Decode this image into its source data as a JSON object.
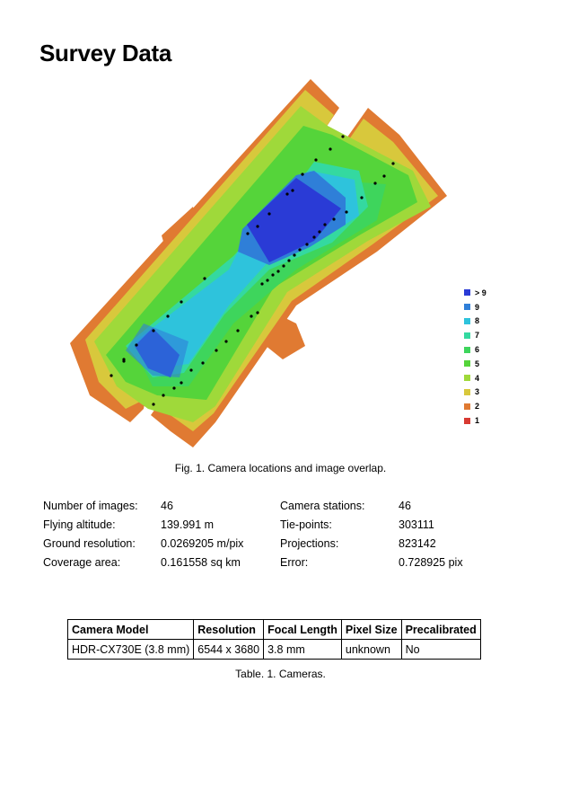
{
  "title": "Survey Data",
  "figure": {
    "caption": "Fig. 1. Camera locations and image overlap.",
    "legend": [
      {
        "label": "> 9",
        "color": "#2a3bd6"
      },
      {
        "label": "9",
        "color": "#2f7fd8"
      },
      {
        "label": "8",
        "color": "#2ec3dc"
      },
      {
        "label": "7",
        "color": "#34d9a0"
      },
      {
        "label": "6",
        "color": "#3ed55c"
      },
      {
        "label": "5",
        "color": "#55d43a"
      },
      {
        "label": "4",
        "color": "#9fd93a"
      },
      {
        "label": "3",
        "color": "#d8c83c"
      },
      {
        "label": "2",
        "color": "#e07a32"
      },
      {
        "label": "1",
        "color": "#d83a32"
      }
    ]
  },
  "stats": {
    "images_label": "Number of images:",
    "images_value": "46",
    "altitude_label": "Flying altitude:",
    "altitude_value": "139.991 m",
    "resolution_label": "Ground resolution:",
    "resolution_value": "0.0269205 m/pix",
    "coverage_label": "Coverage area:",
    "coverage_value": "0.161558 sq km",
    "stations_label": "Camera stations:",
    "stations_value": "46",
    "tiepoints_label": "Tie-points:",
    "tiepoints_value": "303111",
    "projections_label": "Projections:",
    "projections_value": "823142",
    "error_label": "Error:",
    "error_value": "0.728925 pix"
  },
  "camera_table": {
    "headers": [
      "Camera Model",
      "Resolution",
      "Focal Length",
      "Pixel Size",
      "Precalibrated"
    ],
    "row": [
      "HDR-CX730E (3.8 mm)",
      "6544 x 3680",
      "3.8 mm",
      "unknown",
      "No"
    ],
    "caption": "Table. 1. Cameras."
  }
}
